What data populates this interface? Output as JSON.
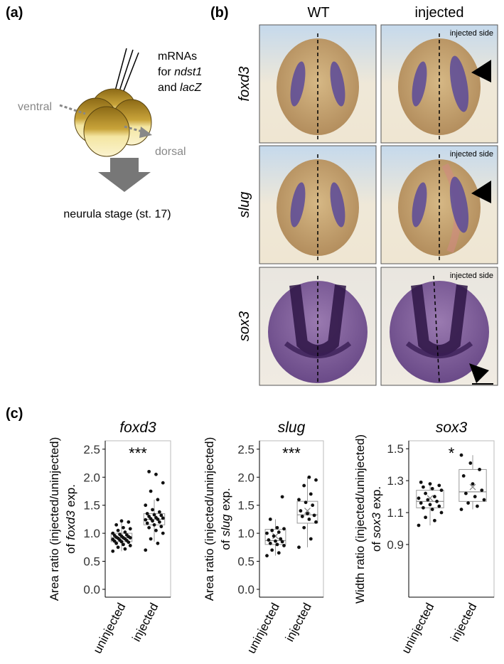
{
  "panel_a": {
    "label": "(a)",
    "injection": [
      "mRNAs",
      "for",
      "ndst1",
      "and",
      "lacZ"
    ],
    "ventral": "ventral",
    "dorsal": "dorsal",
    "stage": "neurula stage (st. 17)"
  },
  "panel_b": {
    "label": "(b)",
    "columns": [
      "WT",
      "injected"
    ],
    "rows": [
      "foxd3",
      "slug",
      "sox3"
    ],
    "annotation": "injected side"
  },
  "panel_c": {
    "label": "(c)"
  },
  "chart_data": [
    {
      "type": "box",
      "title": "foxd3",
      "significance": "***",
      "ylabel": [
        "Area ratio (injected/uninjected)",
        "of",
        "foxd3",
        "exp."
      ],
      "categories": [
        "uninjected",
        "injected"
      ],
      "ylim": [
        -0.14,
        2.65
      ],
      "yticks": [
        {
          "value": 0,
          "label": "0.0"
        },
        0.5,
        {
          "value": 1,
          "label": "1.0"
        },
        1.5,
        {
          "value": 2,
          "label": "2.0"
        },
        2.5
      ],
      "boxes": [
        {
          "whisker_low": 0.68,
          "q1": 0.85,
          "median": 0.92,
          "q3": 1.0,
          "whisker_high": 1.22,
          "points": [
            0.68,
            0.72,
            0.75,
            0.78,
            0.8,
            0.82,
            0.84,
            0.85,
            0.86,
            0.87,
            0.88,
            0.89,
            0.9,
            0.91,
            0.92,
            0.92,
            0.93,
            0.94,
            0.95,
            0.96,
            0.97,
            0.98,
            1.0,
            1.02,
            1.05,
            1.08,
            1.1,
            1.15,
            1.2,
            1.22
          ]
        },
        {
          "whisker_low": 0.85,
          "q1": 1.15,
          "median": 1.25,
          "q3": 1.35,
          "whisker_high": 1.6,
          "points": [
            0.7,
            0.82,
            0.9,
            1.0,
            1.05,
            1.1,
            1.12,
            1.15,
            1.18,
            1.2,
            1.22,
            1.24,
            1.25,
            1.26,
            1.27,
            1.28,
            1.3,
            1.32,
            1.33,
            1.35,
            1.38,
            1.42,
            1.5,
            1.6,
            1.75,
            1.9,
            2.05,
            2.1
          ]
        }
      ]
    },
    {
      "type": "box",
      "title": "slug",
      "significance": "***",
      "ylabel": [
        "Area ratio (injected/uninjected)",
        "of",
        "slug",
        "exp."
      ],
      "categories": [
        "uninjected",
        "injected"
      ],
      "ylim": [
        -0.14,
        2.65
      ],
      "yticks": [
        {
          "value": 0,
          "label": "0.0"
        },
        0.5,
        {
          "value": 1,
          "label": "1.0"
        },
        1.5,
        {
          "value": 2,
          "label": "2.0"
        },
        2.5
      ],
      "boxes": [
        {
          "whisker_low": 0.6,
          "q1": 0.8,
          "median": 0.87,
          "q3": 1.07,
          "whisker_high": 1.25,
          "mean": 0.95,
          "points": [
            0.6,
            0.65,
            0.7,
            0.78,
            0.8,
            0.82,
            0.85,
            0.86,
            0.88,
            0.9,
            0.95,
            1.0,
            1.02,
            1.05,
            1.08,
            1.1,
            1.25,
            1.65
          ]
        },
        {
          "whisker_low": 0.75,
          "q1": 1.18,
          "median": 1.33,
          "q3": 1.57,
          "whisker_high": 2.0,
          "mean": 1.4,
          "points": [
            0.75,
            0.9,
            1.1,
            1.2,
            1.25,
            1.3,
            1.32,
            1.35,
            1.4,
            1.5,
            1.55,
            1.6,
            1.7,
            1.85,
            1.95,
            2.0
          ]
        }
      ]
    },
    {
      "type": "box",
      "title": "sox3",
      "significance": "*",
      "ylabel": [
        "Width ratio (injected/uninjected)",
        "of",
        "sox3",
        "exp."
      ],
      "categories": [
        "uninjected",
        "injected"
      ],
      "ylim": [
        0.57,
        1.55
      ],
      "yticks": [
        0.9,
        1.1,
        1.3,
        1.5
      ],
      "boxes": [
        {
          "whisker_low": 1.02,
          "q1": 1.13,
          "median": 1.17,
          "q3": 1.24,
          "whisker_high": 1.29,
          "mean": 1.19,
          "points": [
            1.02,
            1.05,
            1.07,
            1.1,
            1.12,
            1.13,
            1.14,
            1.15,
            1.16,
            1.17,
            1.18,
            1.19,
            1.2,
            1.22,
            1.24,
            1.25,
            1.26,
            1.27,
            1.28,
            1.29
          ]
        },
        {
          "whisker_low": 1.12,
          "q1": 1.17,
          "median": 1.23,
          "q3": 1.37,
          "whisker_high": 1.46,
          "mean": 1.26,
          "points": [
            1.12,
            1.14,
            1.16,
            1.18,
            1.2,
            1.22,
            1.24,
            1.28,
            1.33,
            1.37,
            1.41,
            1.46
          ]
        }
      ]
    }
  ]
}
